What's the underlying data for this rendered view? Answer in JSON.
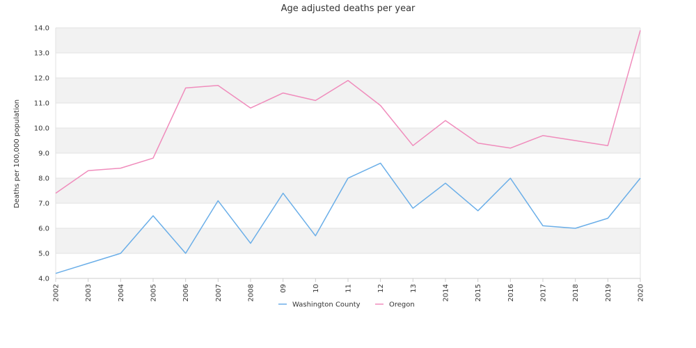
{
  "chart_data": {
    "type": "line",
    "title": "Age adjusted deaths per year",
    "xlabel": "",
    "ylabel": "Deaths per 100,000 population",
    "ylim": [
      4.0,
      14.0
    ],
    "yticks": [
      "4.0",
      "5.0",
      "6.0",
      "7.0",
      "8.0",
      "9.0",
      "10.0",
      "11.0",
      "12.0",
      "13.0",
      "14.0"
    ],
    "categories": [
      "2002",
      "2003",
      "2004",
      "2005",
      "2006",
      "2007",
      "2008",
      "09",
      "10",
      "11",
      "12",
      "13",
      "2014",
      "2015",
      "2016",
      "2017",
      "2018",
      "2019",
      "2020"
    ],
    "series": [
      {
        "name": "Washington County",
        "color": "#6aaee8",
        "values": [
          4.2,
          4.6,
          5.0,
          6.5,
          5.0,
          7.1,
          5.4,
          7.4,
          5.7,
          8.0,
          8.6,
          6.8,
          7.8,
          6.7,
          8.0,
          6.1,
          6.0,
          6.4,
          8.0
        ]
      },
      {
        "name": "Oregon",
        "color": "#f08cbc",
        "values": [
          7.4,
          8.3,
          8.4,
          8.8,
          11.6,
          11.7,
          10.8,
          11.4,
          11.1,
          11.9,
          10.9,
          9.3,
          10.3,
          9.4,
          9.2,
          9.7,
          9.5,
          9.3,
          13.9
        ]
      }
    ],
    "legend_position": "bottom",
    "grid": true
  }
}
